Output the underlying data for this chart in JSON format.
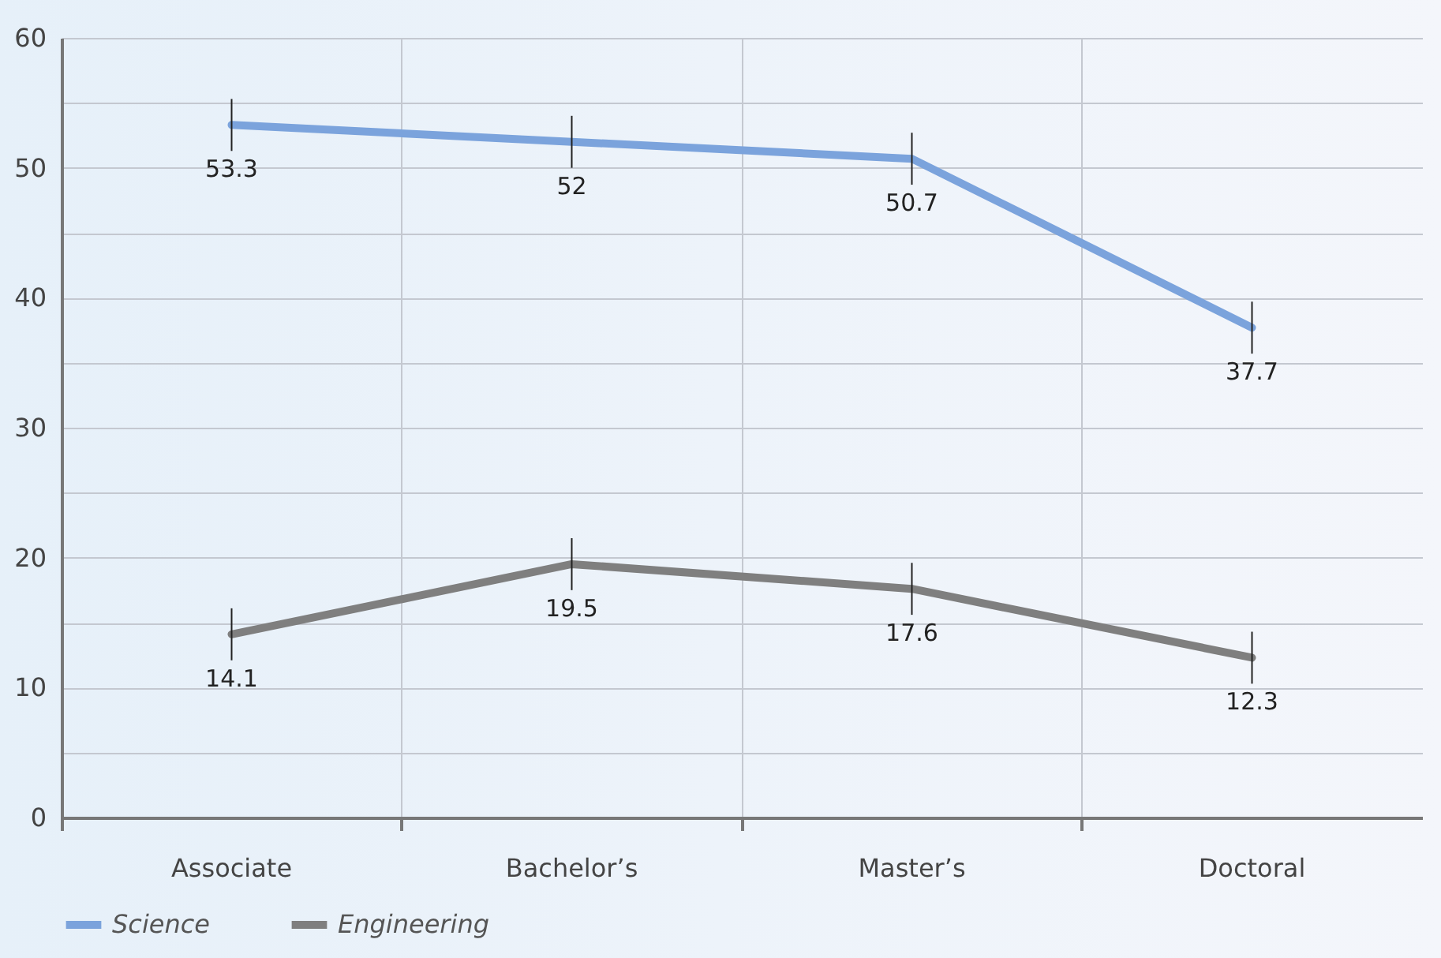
{
  "chart_data": {
    "type": "line",
    "categories": [
      "Associate",
      "Bachelor’s",
      "Master’s",
      "Doctoral"
    ],
    "series": [
      {
        "name": "Science",
        "color": "#7ba3dc",
        "values": [
          53.3,
          52,
          50.7,
          37.7
        ],
        "errors": [
          2,
          2,
          2,
          2
        ]
      },
      {
        "name": "Engineering",
        "color": "#7f7f7f",
        "values": [
          14.1,
          19.5,
          17.6,
          12.3
        ],
        "errors": [
          2,
          2,
          2,
          2
        ]
      }
    ],
    "ylim": [
      0,
      60
    ],
    "yticks": [
      0,
      {
        "value": 5,
        "label": null
      },
      10,
      {
        "value": 15,
        "label": null
      },
      20,
      {
        "value": 25,
        "label": null
      },
      30,
      {
        "value": 35,
        "label": null
      },
      40,
      {
        "value": 45,
        "label": null
      },
      50,
      {
        "value": 55,
        "label": null
      },
      60
    ],
    "grid": true,
    "legend": "bottom",
    "data_labels": true,
    "marker": "none",
    "line_style": "solid"
  }
}
